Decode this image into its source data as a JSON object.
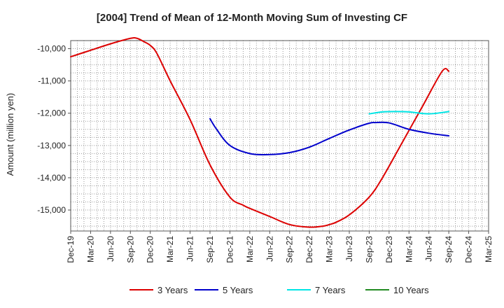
{
  "chart_data": {
    "type": "line",
    "title": "[2004]  Trend of Mean of 12-Month Moving Sum of Investing CF",
    "xlabel": "",
    "ylabel": "Amount (million yen)",
    "ylim": [
      -15650,
      -9750
    ],
    "y_ticks": [
      -10000,
      -11000,
      -12000,
      -13000,
      -14000,
      -15000
    ],
    "y_tick_labels": [
      "-10,000",
      "-11,000",
      "-12,000",
      "-13,000",
      "-14,000",
      "-15,000"
    ],
    "x_tick_labels": [
      "Dec-19",
      "Mar-20",
      "Jun-20",
      "Sep-20",
      "Dec-20",
      "Mar-21",
      "Jun-21",
      "Sep-21",
      "Dec-21",
      "Mar-22",
      "Jun-22",
      "Sep-22",
      "Dec-22",
      "Mar-23",
      "Jun-23",
      "Sep-23",
      "Dec-23",
      "Mar-24",
      "Jun-24",
      "Sep-24",
      "Dec-24",
      "Mar-25"
    ],
    "x_range_months": [
      0,
      63
    ],
    "grid": true,
    "legend_position": "bottom",
    "series": [
      {
        "name": "3 Years",
        "color": "#dd0000",
        "x": [
          0,
          3,
          6,
          9,
          10,
          11,
          12,
          13,
          15,
          18,
          21,
          24,
          26,
          27,
          30,
          33,
          36,
          38,
          39,
          40,
          42,
          45,
          47,
          50,
          53,
          56,
          57
        ],
        "y": [
          -10250,
          -10050,
          -9850,
          -9680,
          -9680,
          -9780,
          -9900,
          -10150,
          -11000,
          -12200,
          -13600,
          -14600,
          -14850,
          -14950,
          -15200,
          -15450,
          -15530,
          -15500,
          -15450,
          -15380,
          -15150,
          -14600,
          -14000,
          -12900,
          -11800,
          -10700,
          -10700
        ]
      },
      {
        "name": "5 Years",
        "color": "#0000cc",
        "x": [
          21,
          22,
          24,
          27,
          30,
          33,
          36,
          39,
          42,
          45,
          46,
          48,
          51,
          54,
          57
        ],
        "y": [
          -12170,
          -12500,
          -13000,
          -13250,
          -13280,
          -13220,
          -13050,
          -12780,
          -12520,
          -12310,
          -12290,
          -12300,
          -12500,
          -12620,
          -12700
        ]
      },
      {
        "name": "7 Years",
        "color": "#00e5e5",
        "x": [
          45,
          47,
          49,
          51,
          54,
          57
        ],
        "y": [
          -12020,
          -11960,
          -11950,
          -11960,
          -12020,
          -11950
        ]
      },
      {
        "name": "10 Years",
        "color": "#228b22",
        "x": [],
        "y": []
      }
    ]
  }
}
